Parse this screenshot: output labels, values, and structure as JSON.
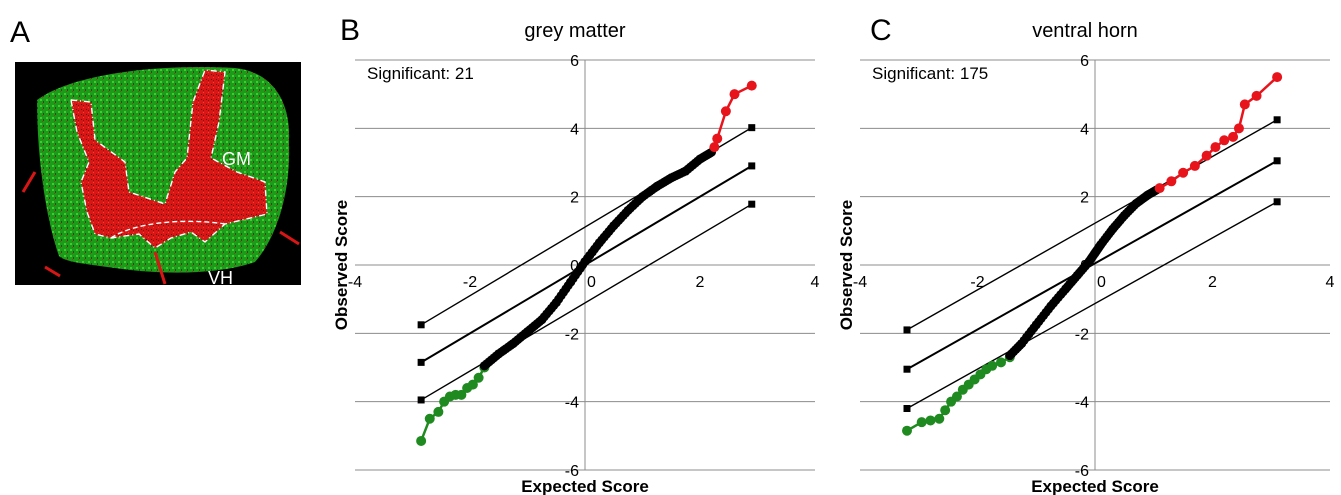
{
  "panels": {
    "a": {
      "letter": "A",
      "labels": {
        "gm": "GM",
        "vh": "VH"
      }
    },
    "b": {
      "letter": "B"
    },
    "c": {
      "letter": "C"
    }
  },
  "colors": {
    "significant_high": "#e8141c",
    "significant_low": "#1f8a1f",
    "not_significant": "#000000",
    "grid": "#8c8c8c",
    "micrograph_green": "#22a81e",
    "micrograph_red": "#e01414"
  },
  "chart_data": [
    {
      "type": "scatter",
      "title": "grey matter",
      "annotation": "Significant: 21",
      "xlabel": "Expected Score",
      "ylabel": "Observed Score",
      "xlim": [
        -4,
        4
      ],
      "ylim": [
        -6,
        6
      ],
      "xticks": [
        -4,
        -2,
        0,
        2,
        4
      ],
      "yticks": [
        -6,
        -4,
        -2,
        0,
        2,
        4,
        6
      ],
      "grid": "horizontal",
      "series": [
        {
          "role": "low",
          "x": [
            -2.85,
            -2.7,
            -2.55,
            -2.45,
            -2.35,
            -2.25,
            -2.15,
            -2.05,
            -1.95,
            -1.85,
            -1.75
          ],
          "y": [
            -5.15,
            -4.5,
            -4.3,
            -4.0,
            -3.85,
            -3.8,
            -3.8,
            -3.6,
            -3.5,
            -3.3,
            -3.0
          ]
        },
        {
          "role": "not_significant",
          "x": [
            -1.75,
            -1.5,
            -1.25,
            -1.0,
            -0.75,
            -0.5,
            -0.25,
            0.0,
            0.25,
            0.5,
            0.75,
            1.0,
            1.25,
            1.5,
            1.75,
            2.0,
            2.2
          ],
          "y": [
            -2.95,
            -2.6,
            -2.3,
            -1.95,
            -1.6,
            -1.1,
            -0.5,
            0.1,
            0.65,
            1.15,
            1.6,
            2.0,
            2.3,
            2.55,
            2.75,
            3.1,
            3.3
          ]
        },
        {
          "role": "high",
          "x": [
            2.25,
            2.3,
            2.45,
            2.6,
            2.9
          ],
          "y": [
            3.45,
            3.7,
            4.5,
            5.0,
            5.25
          ]
        }
      ],
      "reference_lines": [
        {
          "x": [
            -2.85,
            2.9
          ],
          "y": [
            -1.75,
            4.02
          ]
        },
        {
          "x": [
            -2.85,
            2.9
          ],
          "y": [
            -2.85,
            2.9
          ]
        },
        {
          "x": [
            -2.85,
            2.9
          ],
          "y": [
            -3.95,
            1.78
          ]
        }
      ]
    },
    {
      "type": "scatter",
      "title": "ventral horn",
      "annotation": "Significant: 175",
      "xlabel": "Expected Score",
      "ylabel": "Observed Score",
      "xlim": [
        -4,
        4
      ],
      "ylim": [
        -6,
        6
      ],
      "xticks": [
        -4,
        -2,
        0,
        2,
        4
      ],
      "yticks": [
        -6,
        -4,
        -2,
        0,
        2,
        4,
        6
      ],
      "grid": "horizontal",
      "series": [
        {
          "role": "low",
          "x": [
            -3.2,
            -2.95,
            -2.8,
            -2.65,
            -2.55,
            -2.45,
            -2.35,
            -2.25,
            -2.15,
            -2.05,
            -1.95,
            -1.85,
            -1.75,
            -1.6,
            -1.45
          ],
          "y": [
            -4.85,
            -4.6,
            -4.55,
            -4.5,
            -4.25,
            -4.0,
            -3.85,
            -3.65,
            -3.5,
            -3.35,
            -3.2,
            -3.05,
            -2.95,
            -2.85,
            -2.7
          ]
        },
        {
          "role": "not_significant",
          "x": [
            -1.45,
            -1.25,
            -1.0,
            -0.75,
            -0.5,
            -0.3,
            -0.1,
            0.0,
            0.1,
            0.3,
            0.5,
            0.7,
            0.9,
            1.05
          ],
          "y": [
            -2.65,
            -2.3,
            -1.75,
            -1.2,
            -0.7,
            -0.3,
            0.1,
            0.35,
            0.6,
            1.05,
            1.45,
            1.8,
            2.05,
            2.2
          ]
        },
        {
          "role": "high",
          "x": [
            1.1,
            1.3,
            1.5,
            1.7,
            1.9,
            2.05,
            2.2,
            2.35,
            2.45,
            2.55,
            2.75,
            3.1
          ],
          "y": [
            2.25,
            2.45,
            2.7,
            2.9,
            3.2,
            3.45,
            3.65,
            3.75,
            4.0,
            4.7,
            4.95,
            5.5
          ]
        }
      ],
      "reference_lines": [
        {
          "x": [
            -3.2,
            3.1
          ],
          "y": [
            -1.9,
            4.25
          ]
        },
        {
          "x": [
            -3.2,
            3.1
          ],
          "y": [
            -3.05,
            3.05
          ]
        },
        {
          "x": [
            -3.2,
            3.1
          ],
          "y": [
            -4.2,
            1.85
          ]
        }
      ]
    }
  ]
}
